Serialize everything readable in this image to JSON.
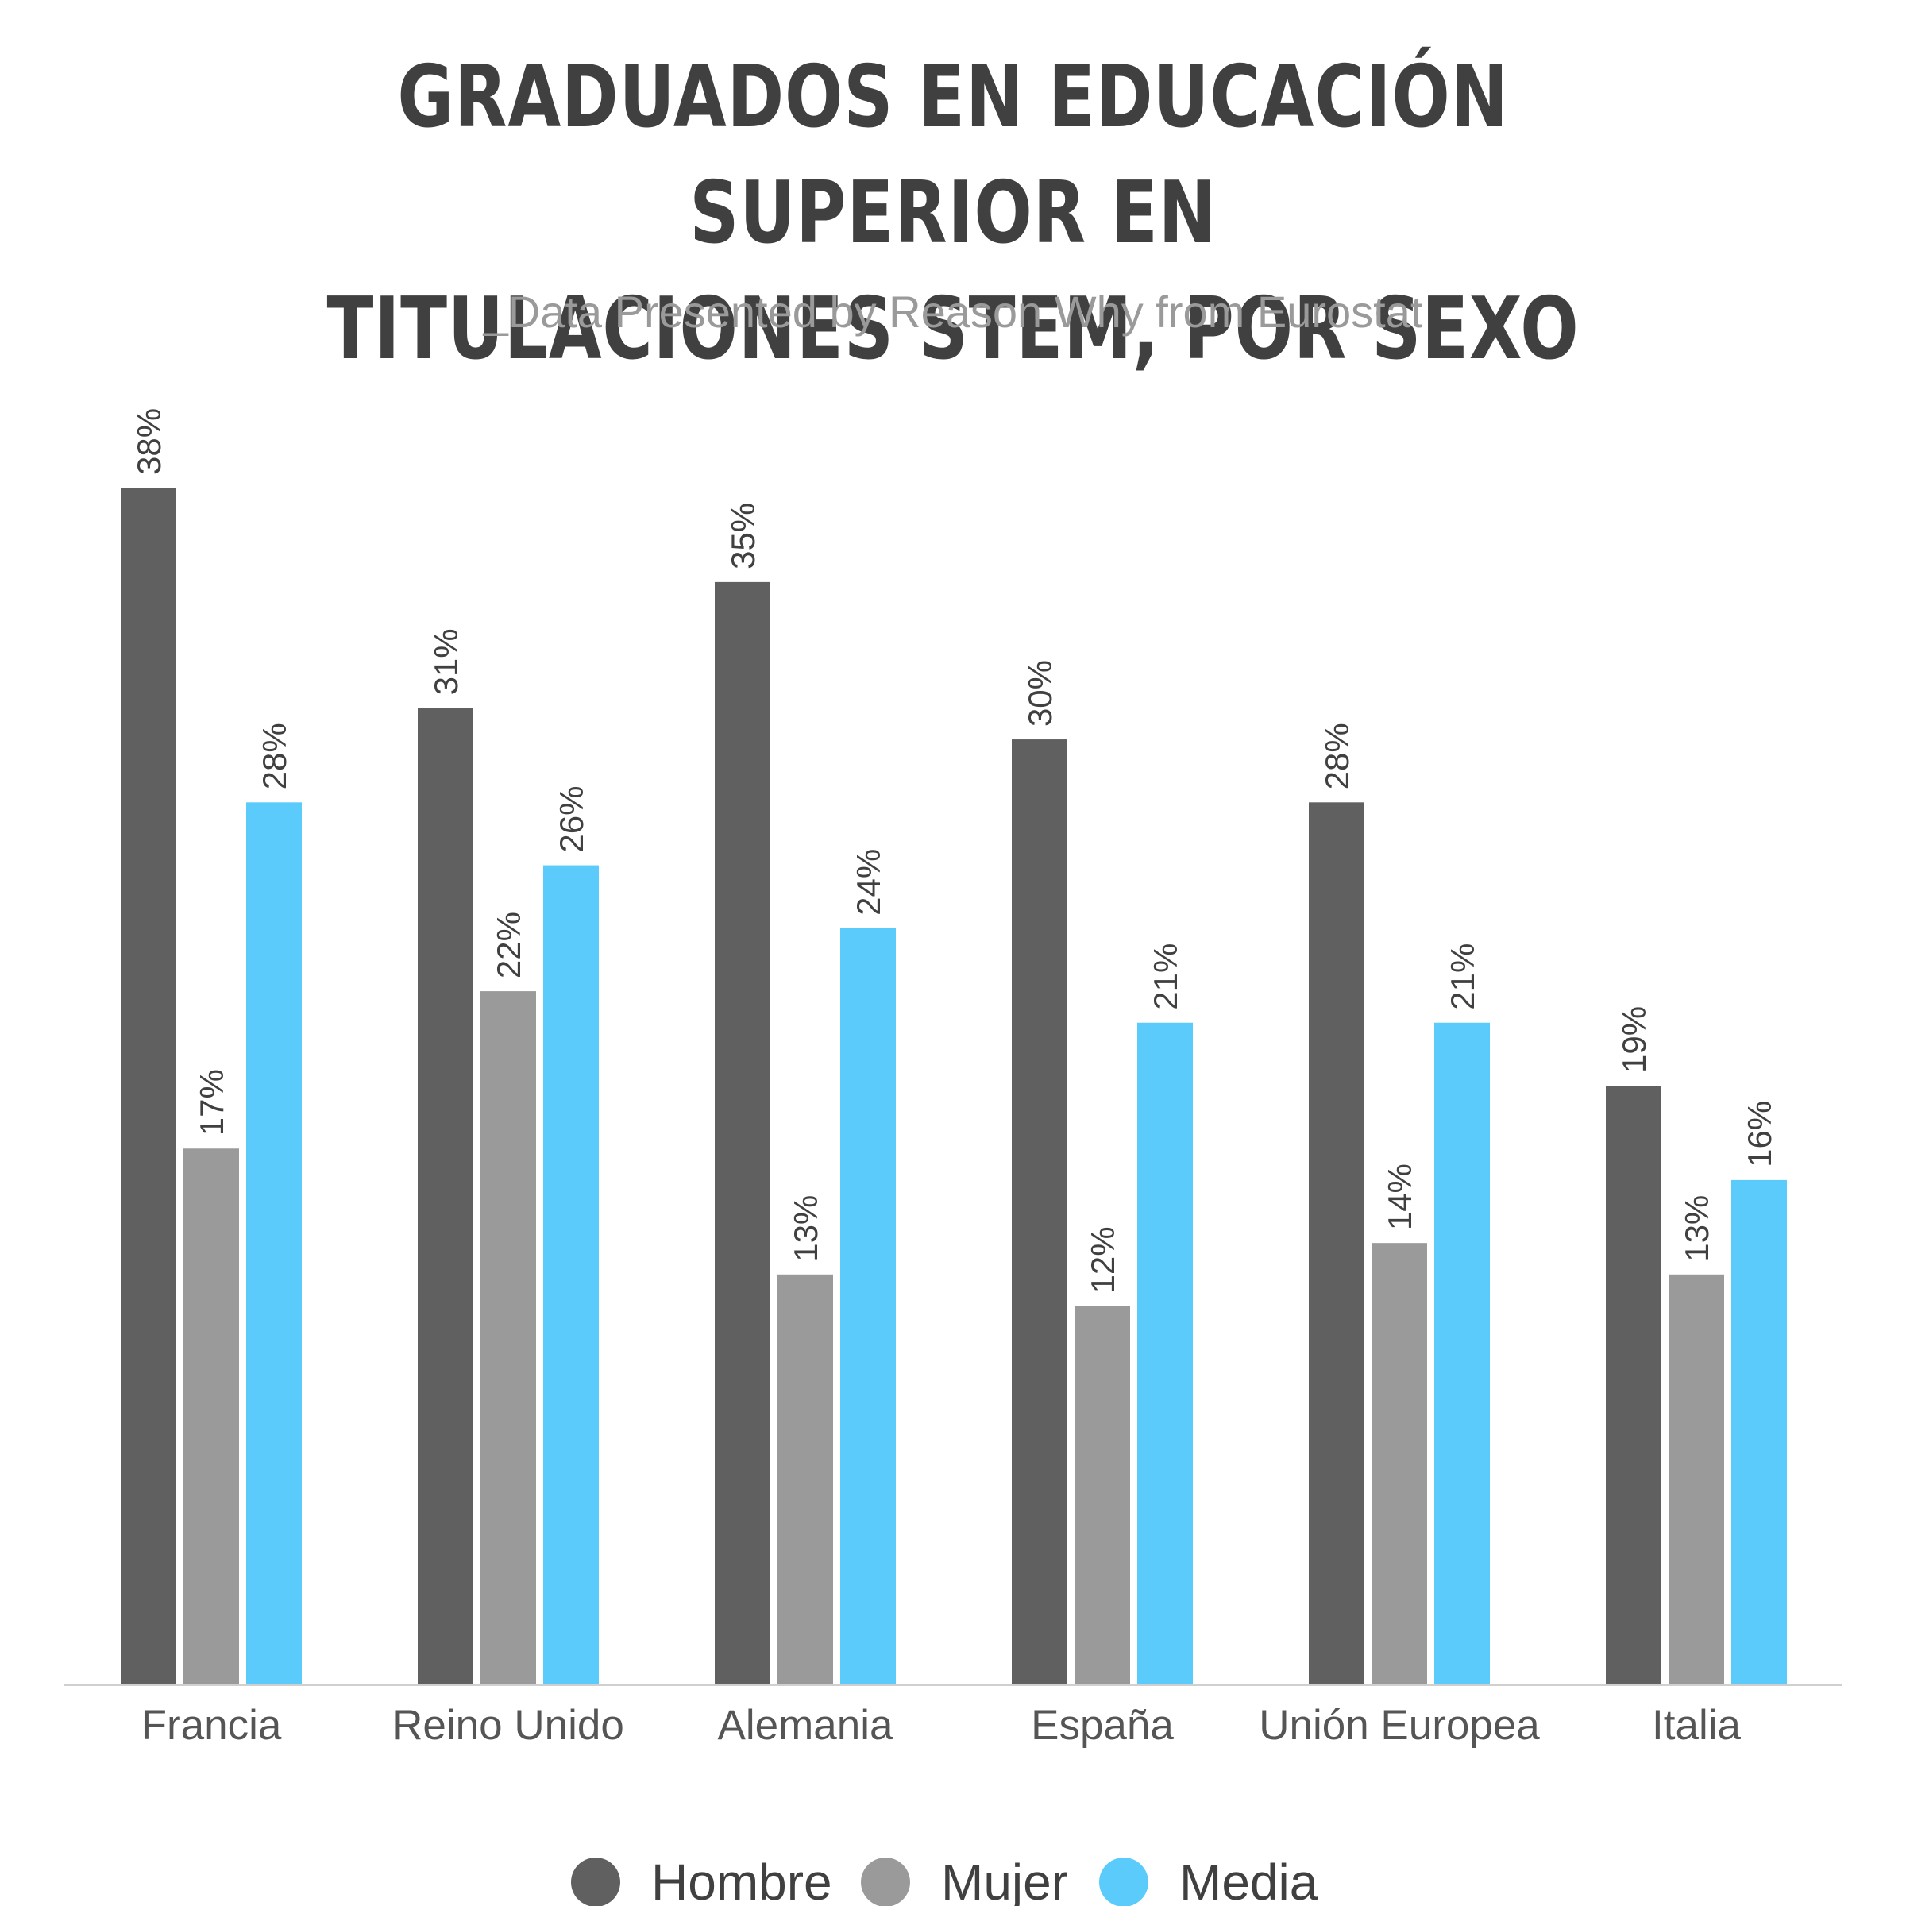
{
  "title_lines": [
    "GRADUADOS EN EDUCACIÓN SUPERIOR EN",
    "TITULACIONES STEM, POR SEXO"
  ],
  "subtitle": "_Data Presented by Reason Why from Eurostat",
  "chart_data": {
    "type": "bar",
    "title": "GRADUADOS EN EDUCACIÓN SUPERIOR EN TITULACIONES STEM, POR SEXO",
    "subtitle": "_Data Presented by Reason Why from Eurostat",
    "categories": [
      "Francia",
      "Reino Unido",
      "Alemania",
      "España",
      "Unión Europea",
      "Italia"
    ],
    "series": [
      {
        "name": "Hombre",
        "values": [
          38,
          31,
          35,
          30,
          28,
          19
        ],
        "color": "#606060"
      },
      {
        "name": "Mujer",
        "values": [
          17,
          22,
          13,
          12,
          14,
          13
        ],
        "color": "#9a9a9a"
      },
      {
        "name": "Media",
        "values": [
          28,
          26,
          24,
          21,
          21,
          16
        ],
        "color": "#5bcbfc"
      }
    ],
    "value_suffix": "%",
    "ylim": [
      0,
      38
    ],
    "grid": false,
    "legend_position": "bottom-center",
    "xlabel": "",
    "ylabel": ""
  }
}
